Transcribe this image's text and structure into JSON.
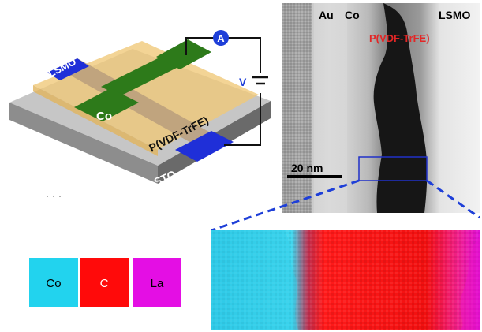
{
  "schematic": {
    "lsmo_label": "LSMO",
    "co_label": "Co",
    "polymer_label": "P(VDF-TrFE)",
    "substrate_label": "STO",
    "ammeter_label": "A",
    "voltage_label": "V"
  },
  "tem": {
    "au_label": "Au",
    "co_label": "Co",
    "lsmo_label": "LSMO",
    "polymer_label": "P(VDF-TrFE)",
    "scale_bar_label": "20 nm"
  },
  "legend": {
    "items": [
      {
        "label": "Co",
        "color": "#22d3ee"
      },
      {
        "label": "C",
        "color": "#ff0a0a"
      },
      {
        "label": "La",
        "color": "#e40ee4"
      }
    ]
  },
  "colors": {
    "cobalt_green": "#2d7a1a",
    "lsmo_blue": "#1f2fd8",
    "polymer_yellow": "#f0c877",
    "substrate_gray": "#bdbdbd",
    "circuit_blue": "#1e3fd8",
    "polymer_red": "#e32626"
  }
}
